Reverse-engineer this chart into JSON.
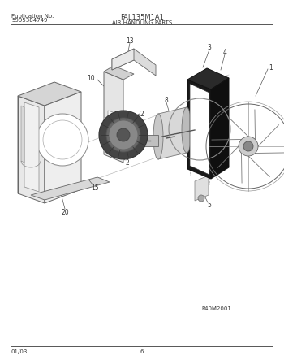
{
  "title_left_line1": "Publication No.",
  "title_left_line2": "5995384749",
  "title_center": "FAL135M1A1",
  "subtitle": "AIR HANDLING PARTS",
  "bottom_left": "01/03",
  "bottom_center": "6",
  "bottom_right": "P40M2001",
  "bg_color": "#ffffff",
  "lc": "#555555",
  "tc": "#333333"
}
